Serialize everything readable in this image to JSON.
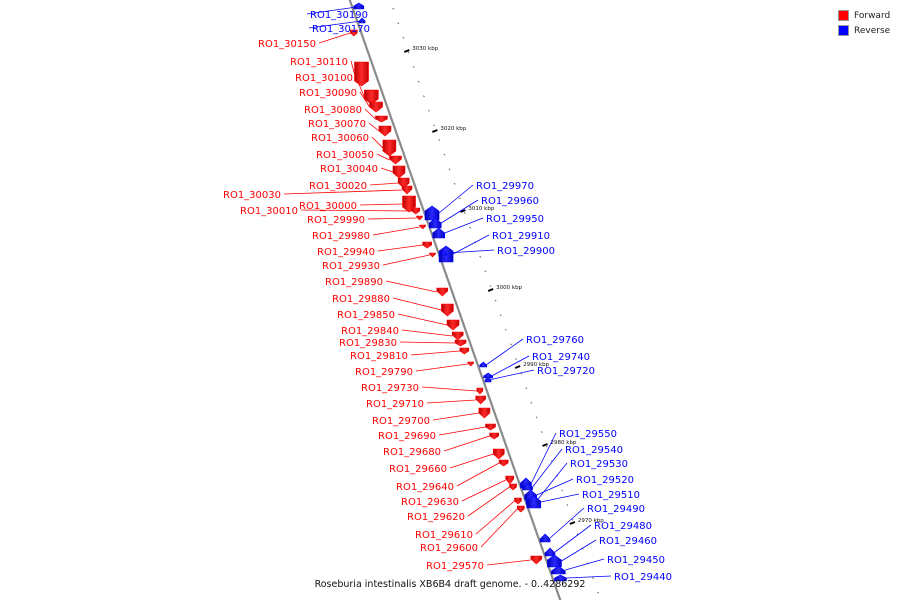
{
  "caption": "Roseburia intestinalis XB6B4 draft genome. - 0..4286292",
  "legend": [
    {
      "label": "Forward",
      "color": "#ff0000"
    },
    {
      "label": "Reverse",
      "color": "#0000ff"
    }
  ],
  "colors": {
    "forward": "#ff0000",
    "reverse": "#0000ff",
    "axis": "#8a8a8a"
  },
  "ticks": [
    "3030 kbp",
    "3020 kbp",
    "3010 kbp",
    "3000 kbp",
    "2990 kbp",
    "2980 kbp",
    "2970 kbp"
  ],
  "genes": [
    {
      "id": "RO1_30190",
      "strand": "reverse"
    },
    {
      "id": "RO1_30170",
      "strand": "reverse"
    },
    {
      "id": "RO1_30150",
      "strand": "forward"
    },
    {
      "id": "RO1_30110",
      "strand": "forward"
    },
    {
      "id": "RO1_30100",
      "strand": "forward"
    },
    {
      "id": "RO1_30090",
      "strand": "forward"
    },
    {
      "id": "RO1_30080",
      "strand": "forward"
    },
    {
      "id": "RO1_30070",
      "strand": "forward"
    },
    {
      "id": "RO1_30060",
      "strand": "forward"
    },
    {
      "id": "RO1_30050",
      "strand": "forward"
    },
    {
      "id": "RO1_30040",
      "strand": "forward"
    },
    {
      "id": "RO1_30020",
      "strand": "forward"
    },
    {
      "id": "RO1_30030",
      "strand": "forward"
    },
    {
      "id": "RO1_30000",
      "strand": "forward"
    },
    {
      "id": "RO1_30010",
      "strand": "forward"
    },
    {
      "id": "RO1_29990",
      "strand": "forward"
    },
    {
      "id": "RO1_29980",
      "strand": "forward"
    },
    {
      "id": "RO1_29940",
      "strand": "forward"
    },
    {
      "id": "RO1_29930",
      "strand": "forward"
    },
    {
      "id": "RO1_29890",
      "strand": "forward"
    },
    {
      "id": "RO1_29880",
      "strand": "forward"
    },
    {
      "id": "RO1_29850",
      "strand": "forward"
    },
    {
      "id": "RO1_29840",
      "strand": "forward"
    },
    {
      "id": "RO1_29830",
      "strand": "forward"
    },
    {
      "id": "RO1_29810",
      "strand": "forward"
    },
    {
      "id": "RO1_29790",
      "strand": "forward"
    },
    {
      "id": "RO1_29730",
      "strand": "forward"
    },
    {
      "id": "RO1_29710",
      "strand": "forward"
    },
    {
      "id": "RO1_29700",
      "strand": "forward"
    },
    {
      "id": "RO1_29690",
      "strand": "forward"
    },
    {
      "id": "RO1_29680",
      "strand": "forward"
    },
    {
      "id": "RO1_29660",
      "strand": "forward"
    },
    {
      "id": "RO1_29640",
      "strand": "forward"
    },
    {
      "id": "RO1_29630",
      "strand": "forward"
    },
    {
      "id": "RO1_29620",
      "strand": "forward"
    },
    {
      "id": "RO1_29610",
      "strand": "forward"
    },
    {
      "id": "RO1_29600",
      "strand": "forward"
    },
    {
      "id": "RO1_29570",
      "strand": "forward"
    },
    {
      "id": "RO1_29970",
      "strand": "reverse"
    },
    {
      "id": "RO1_29960",
      "strand": "reverse"
    },
    {
      "id": "RO1_29950",
      "strand": "reverse"
    },
    {
      "id": "RO1_29910",
      "strand": "reverse"
    },
    {
      "id": "RO1_29900",
      "strand": "reverse"
    },
    {
      "id": "RO1_29760",
      "strand": "reverse"
    },
    {
      "id": "RO1_29740",
      "strand": "reverse"
    },
    {
      "id": "RO1_29720",
      "strand": "reverse"
    },
    {
      "id": "RO1_29550",
      "strand": "reverse"
    },
    {
      "id": "RO1_29540",
      "strand": "reverse"
    },
    {
      "id": "RO1_29530",
      "strand": "reverse"
    },
    {
      "id": "RO1_29520",
      "strand": "reverse"
    },
    {
      "id": "RO1_29510",
      "strand": "reverse"
    },
    {
      "id": "RO1_29490",
      "strand": "reverse"
    },
    {
      "id": "RO1_29480",
      "strand": "reverse"
    },
    {
      "id": "RO1_29460",
      "strand": "reverse"
    },
    {
      "id": "RO1_29450",
      "strand": "reverse"
    },
    {
      "id": "RO1_29440",
      "strand": "reverse"
    }
  ]
}
